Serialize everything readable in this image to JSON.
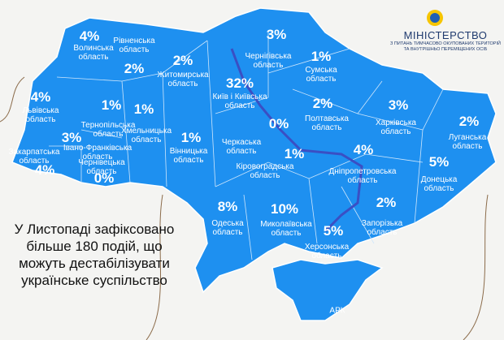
{
  "header": {
    "title": "МІНІСТЕРСТВО",
    "subtitle": [
      "З ПИТАНЬ ТИМЧАСОВО ОКУПОВАНИХ ТЕРИТОРІЙ",
      "ТА ВНУТРІШНЬО ПЕРЕМІЩЕНИХ ОСІБ"
    ]
  },
  "headline": [
    "У Листопаді зафіксовано",
    "більше 180 подій, що",
    "можуть дестабілізувати",
    "українське суспільство"
  ],
  "regions": [
    {
      "name": "Волинська\nобласть",
      "value": "4%"
    },
    {
      "name": "Рівненська\nобласть",
      "value": "2%"
    },
    {
      "name": "Житомирська\nобласть",
      "value": "2%"
    },
    {
      "name": "Львівська\nобласть",
      "value": "4%"
    },
    {
      "name": "Тернопільська\nобласть",
      "value": "1%"
    },
    {
      "name": "Хмельницька\nобласть",
      "value": "1%"
    },
    {
      "name": "Вінницька\nобласть",
      "value": "1%"
    },
    {
      "name": "Закарпатська\nобласть",
      "value": "4%"
    },
    {
      "name": "Івано-Франківська\nобласть",
      "value": "3%"
    },
    {
      "name": "Чернівецька\nобласть",
      "value": "0%"
    },
    {
      "name": "Чернігівська\nобласть",
      "value": "3%"
    },
    {
      "name": "Сумська\nобласть",
      "value": "1%"
    },
    {
      "name": "Київ і Київська\nобласть",
      "value": "32%"
    },
    {
      "name": "Черкаська\nобласть",
      "value": "0%"
    },
    {
      "name": "Полтавська\nобласть",
      "value": "2%"
    },
    {
      "name": "Харківська\nобласть",
      "value": "3%"
    },
    {
      "name": "Луганська\nобласть",
      "value": "2%"
    },
    {
      "name": "Донецька\nобласть",
      "value": "5%"
    },
    {
      "name": "Кіровоградська\nобласть",
      "value": "1%"
    },
    {
      "name": "Дніпропетровська\nобласть",
      "value": "4%"
    },
    {
      "name": "Запорізька\nобласть",
      "value": "2%"
    },
    {
      "name": "Одеська\nобласть",
      "value": "8%"
    },
    {
      "name": "Миколаївська\nобласть",
      "value": "10%"
    },
    {
      "name": "Херсонська\nобласть",
      "value": "5%"
    },
    {
      "name": "АРК",
      "value": null
    }
  ]
}
